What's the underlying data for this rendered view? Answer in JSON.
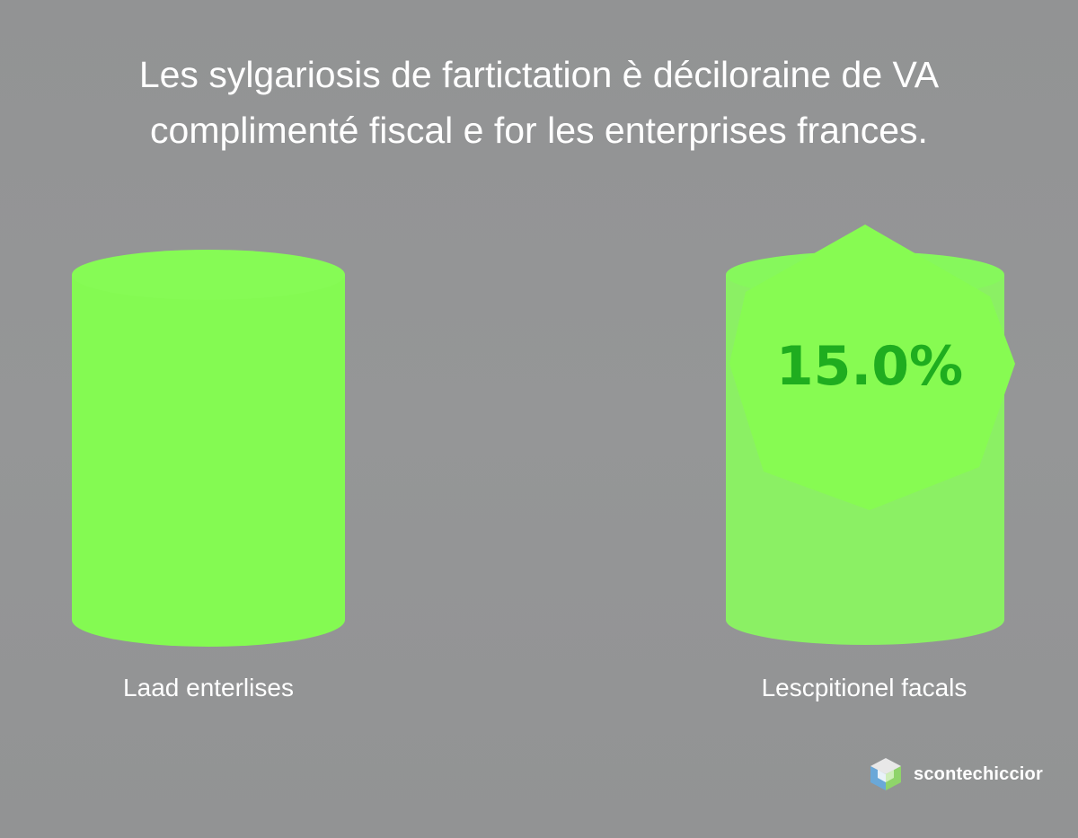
{
  "chart_data": {
    "type": "bar",
    "title_lines": [
      "Les sylgariosis de fartictation è déciloraine de VA",
      "complimenté fiscal e for les enterprises frances."
    ],
    "categories": [
      "Laad enterlises",
      "Lescpitionel facals"
    ],
    "annotations": [
      {
        "category": "Lescpitionel facals",
        "text": "15.0%"
      }
    ],
    "xlabel": "",
    "ylabel": "",
    "grid": false,
    "legend": "none"
  },
  "colors": {
    "background": "#939495",
    "bar_fill": "#84fa52",
    "bar_fill_light": "#8ff06a",
    "annotation_text": "#1fad1f",
    "title_text": "#ffffff"
  },
  "watermark": {
    "icon": "cube-logo-icon",
    "text": "scontechiccior"
  }
}
